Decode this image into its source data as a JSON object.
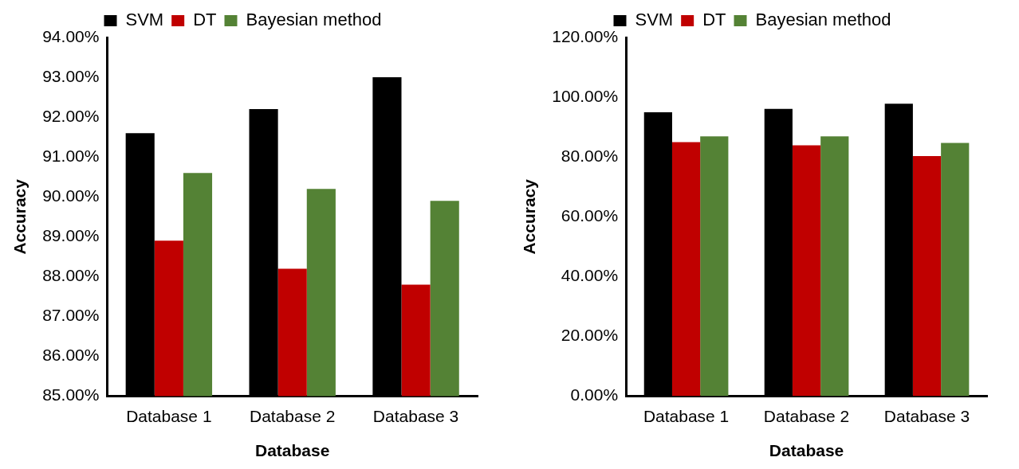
{
  "chart_data": [
    {
      "type": "bar",
      "xlabel": "Database",
      "ylabel": "Accuracy",
      "categories": [
        "Database 1",
        "Database 2",
        "Database 3"
      ],
      "series": [
        {
          "name": "SVM",
          "color": "#000000",
          "values": [
            91.6,
            92.2,
            93.0
          ]
        },
        {
          "name": "DT",
          "color": "#c00000",
          "values": [
            88.9,
            88.2,
            87.8
          ]
        },
        {
          "name": "Bayesian method",
          "color": "#548235",
          "values": [
            90.6,
            90.2,
            89.9
          ]
        }
      ],
      "ylim": [
        85,
        94
      ],
      "yticks": [
        {
          "value": 85,
          "label": "85.00%"
        },
        {
          "value": 86,
          "label": "86.00%"
        },
        {
          "value": 87,
          "label": "87.00%"
        },
        {
          "value": 88,
          "label": "88.00%"
        },
        {
          "value": 89,
          "label": "89.00%"
        },
        {
          "value": 90,
          "label": "90.00%"
        },
        {
          "value": 91,
          "label": "91.00%"
        },
        {
          "value": 92,
          "label": "92.00%"
        },
        {
          "value": 93,
          "label": "93.00%"
        },
        {
          "value": 94,
          "label": "94.00%"
        }
      ],
      "grid": false,
      "legend": "top"
    },
    {
      "type": "bar",
      "xlabel": "Database",
      "ylabel": "Accuracy",
      "categories": [
        "Database 1",
        "Database 2",
        "Database 3"
      ],
      "series": [
        {
          "name": "SVM",
          "color": "#000000",
          "values": [
            95.0,
            96.1,
            97.8
          ]
        },
        {
          "name": "DT",
          "color": "#c00000",
          "values": [
            85.0,
            83.9,
            80.3
          ]
        },
        {
          "name": "Bayesian method",
          "color": "#548235",
          "values": [
            86.9,
            86.9,
            84.7
          ]
        }
      ],
      "ylim": [
        0,
        120
      ],
      "yticks": [
        {
          "value": 0,
          "label": "0.00%"
        },
        {
          "value": 20,
          "label": "20.00%"
        },
        {
          "value": 40,
          "label": "40.00%"
        },
        {
          "value": 60,
          "label": "60.00%"
        },
        {
          "value": 80,
          "label": "80.00%"
        },
        {
          "value": 100,
          "label": "100.00%"
        },
        {
          "value": 120,
          "label": "120.00%"
        }
      ],
      "grid": false,
      "legend": "top"
    }
  ]
}
